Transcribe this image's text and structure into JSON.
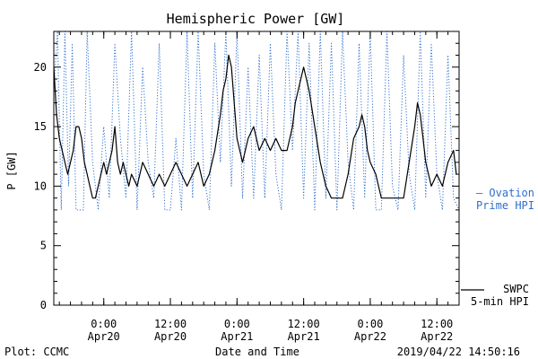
{
  "chart_data": {
    "type": "line",
    "title": "Hemispheric Power [GW]",
    "xlabel": "Date and Time",
    "ylabel": "P [GW]",
    "ylim": [
      0,
      23
    ],
    "xlim": [
      "2019-04-19 15:00",
      "2019-04-22 16:00"
    ],
    "yticks": [
      "0",
      "5",
      "10",
      "15",
      "20"
    ],
    "xticks": [
      {
        "t": "2019-04-20 00:00",
        "top": "0:00",
        "bottom": "Apr20"
      },
      {
        "t": "2019-04-20 12:00",
        "top": "12:00",
        "bottom": "Apr20"
      },
      {
        "t": "2019-04-21 00:00",
        "top": "0:00",
        "bottom": "Apr21"
      },
      {
        "t": "2019-04-21 12:00",
        "top": "12:00",
        "bottom": "Apr21"
      },
      {
        "t": "2019-04-22 00:00",
        "top": "0:00",
        "bottom": "Apr22"
      },
      {
        "t": "2019-04-22 12:00",
        "top": "12:00",
        "bottom": "Apr22"
      }
    ],
    "grid": false,
    "legend_position": "right",
    "series": [
      {
        "name": "SWPC 5-min HPI",
        "legend_lines": [
          "SWPC",
          "5-min HPI"
        ],
        "color": "#000000",
        "style": "solid",
        "x": [
          "2019-04-19 15:00",
          "2019-04-19 15:30",
          "2019-04-19 16:00",
          "2019-04-19 16:30",
          "2019-04-19 17:00",
          "2019-04-19 17:30",
          "2019-04-19 18:00",
          "2019-04-19 18:30",
          "2019-04-19 19:00",
          "2019-04-19 19:30",
          "2019-04-19 20:00",
          "2019-04-19 20:30",
          "2019-04-19 21:00",
          "2019-04-19 21:30",
          "2019-04-19 22:00",
          "2019-04-19 22:30",
          "2019-04-19 23:00",
          "2019-04-19 23:30",
          "2019-04-20 00:00",
          "2019-04-20 00:30",
          "2019-04-20 01:00",
          "2019-04-20 01:30",
          "2019-04-20 02:00",
          "2019-04-20 02:30",
          "2019-04-20 03:00",
          "2019-04-20 03:30",
          "2019-04-20 04:00",
          "2019-04-20 04:30",
          "2019-04-20 05:00",
          "2019-04-20 06:00",
          "2019-04-20 07:00",
          "2019-04-20 08:00",
          "2019-04-20 09:00",
          "2019-04-20 10:00",
          "2019-04-20 11:00",
          "2019-04-20 12:00",
          "2019-04-20 13:00",
          "2019-04-20 14:00",
          "2019-04-20 15:00",
          "2019-04-20 16:00",
          "2019-04-20 17:00",
          "2019-04-20 18:00",
          "2019-04-20 19:00",
          "2019-04-20 20:00",
          "2019-04-20 21:00",
          "2019-04-20 21:30",
          "2019-04-20 22:00",
          "2019-04-20 22:30",
          "2019-04-20 23:00",
          "2019-04-20 23:30",
          "2019-04-21 00:00",
          "2019-04-21 01:00",
          "2019-04-21 02:00",
          "2019-04-21 03:00",
          "2019-04-21 04:00",
          "2019-04-21 05:00",
          "2019-04-21 06:00",
          "2019-04-21 07:00",
          "2019-04-21 08:00",
          "2019-04-21 09:00",
          "2019-04-21 10:00",
          "2019-04-21 10:30",
          "2019-04-21 11:00",
          "2019-04-21 11:30",
          "2019-04-21 12:00",
          "2019-04-21 13:00",
          "2019-04-21 14:00",
          "2019-04-21 15:00",
          "2019-04-21 16:00",
          "2019-04-21 17:00",
          "2019-04-21 18:00",
          "2019-04-21 19:00",
          "2019-04-21 20:00",
          "2019-04-21 21:00",
          "2019-04-21 22:00",
          "2019-04-21 22:30",
          "2019-04-21 23:00",
          "2019-04-21 23:30",
          "2019-04-22 00:00",
          "2019-04-22 01:00",
          "2019-04-22 02:00",
          "2019-04-22 03:00",
          "2019-04-22 04:00",
          "2019-04-22 05:00",
          "2019-04-22 06:00",
          "2019-04-22 07:00",
          "2019-04-22 08:00",
          "2019-04-22 08:30",
          "2019-04-22 09:00",
          "2019-04-22 09:30",
          "2019-04-22 10:00",
          "2019-04-22 11:00",
          "2019-04-22 12:00",
          "2019-04-22 13:00",
          "2019-04-22 14:00",
          "2019-04-22 15:00",
          "2019-04-22 15:30"
        ],
        "y": [
          20,
          16,
          14,
          13,
          12,
          11,
          12,
          13,
          15,
          15,
          14,
          12,
          11,
          10,
          9,
          9,
          10,
          11,
          12,
          11,
          12,
          13,
          15,
          12,
          11,
          12,
          11,
          10,
          11,
          10,
          12,
          11,
          10,
          11,
          10,
          11,
          12,
          11,
          10,
          11,
          12,
          10,
          11,
          13,
          16,
          18,
          19,
          21,
          20,
          17,
          14,
          12,
          14,
          15,
          13,
          14,
          13,
          14,
          13,
          13,
          15,
          17,
          18,
          19,
          20,
          18,
          15,
          12,
          10,
          9,
          9,
          9,
          11,
          14,
          15,
          16,
          15,
          13,
          12,
          11,
          9,
          9,
          9,
          9,
          9,
          12,
          15,
          17,
          16,
          14,
          12,
          10,
          11,
          10,
          12,
          13,
          11
        ]
      },
      {
        "name": "Ovation Prime HPI",
        "legend_lines": [
          "— Ovation",
          "Prime HPI"
        ],
        "color": "#2f6fcf",
        "style": "dotted",
        "x": [
          "2019-04-19 15:00",
          "2019-04-19 15:40",
          "2019-04-19 16:20",
          "2019-04-19 17:00",
          "2019-04-19 17:40",
          "2019-04-19 18:20",
          "2019-04-19 19:00",
          "2019-04-19 19:40",
          "2019-04-19 20:20",
          "2019-04-19 21:00",
          "2019-04-19 22:00",
          "2019-04-19 23:00",
          "2019-04-20 00:00",
          "2019-04-20 01:00",
          "2019-04-20 02:00",
          "2019-04-20 03:00",
          "2019-04-20 04:00",
          "2019-04-20 05:00",
          "2019-04-20 06:00",
          "2019-04-20 07:00",
          "2019-04-20 08:00",
          "2019-04-20 09:00",
          "2019-04-20 10:00",
          "2019-04-20 11:00",
          "2019-04-20 12:00",
          "2019-04-20 13:00",
          "2019-04-20 14:00",
          "2019-04-20 15:00",
          "2019-04-20 16:00",
          "2019-04-20 17:00",
          "2019-04-20 18:00",
          "2019-04-20 19:00",
          "2019-04-20 20:00",
          "2019-04-20 21:00",
          "2019-04-20 22:00",
          "2019-04-20 23:00",
          "2019-04-21 00:00",
          "2019-04-21 01:00",
          "2019-04-21 02:00",
          "2019-04-21 03:00",
          "2019-04-21 04:00",
          "2019-04-21 05:00",
          "2019-04-21 06:00",
          "2019-04-21 07:00",
          "2019-04-21 08:00",
          "2019-04-21 09:00",
          "2019-04-21 10:00",
          "2019-04-21 11:00",
          "2019-04-21 12:00",
          "2019-04-21 13:00",
          "2019-04-21 14:00",
          "2019-04-21 15:00",
          "2019-04-21 16:00",
          "2019-04-21 17:00",
          "2019-04-21 18:00",
          "2019-04-21 19:00",
          "2019-04-21 20:00",
          "2019-04-21 21:00",
          "2019-04-21 22:00",
          "2019-04-21 23:00",
          "2019-04-22 00:00",
          "2019-04-22 01:00",
          "2019-04-22 02:00",
          "2019-04-22 03:00",
          "2019-04-22 04:00",
          "2019-04-22 05:00",
          "2019-04-22 06:00",
          "2019-04-22 07:00",
          "2019-04-22 08:00",
          "2019-04-22 09:00",
          "2019-04-22 10:00",
          "2019-04-22 11:00",
          "2019-04-22 12:00",
          "2019-04-22 13:00",
          "2019-04-22 14:00",
          "2019-04-22 15:00",
          "2019-04-22 16:00"
        ],
        "y": [
          18,
          23,
          8,
          23,
          10,
          22,
          8,
          8,
          8,
          23,
          12,
          8,
          15,
          9,
          22,
          14,
          9,
          23,
          8,
          20,
          12,
          9,
          22,
          8,
          8,
          14,
          8,
          23,
          9,
          23,
          11,
          8,
          22,
          12,
          23,
          10,
          23,
          9,
          20,
          9,
          21,
          9,
          22,
          11,
          8,
          23,
          13,
          23,
          9,
          22,
          8,
          23,
          9,
          22,
          8,
          23,
          12,
          8,
          22,
          9,
          23,
          8,
          8,
          23,
          10,
          8,
          21,
          11,
          8,
          23,
          9,
          22,
          11,
          8,
          21,
          9,
          8
        ]
      }
    ]
  },
  "footer": {
    "left": "Plot: CCMC",
    "right": "2019/04/22 14:50:16"
  }
}
